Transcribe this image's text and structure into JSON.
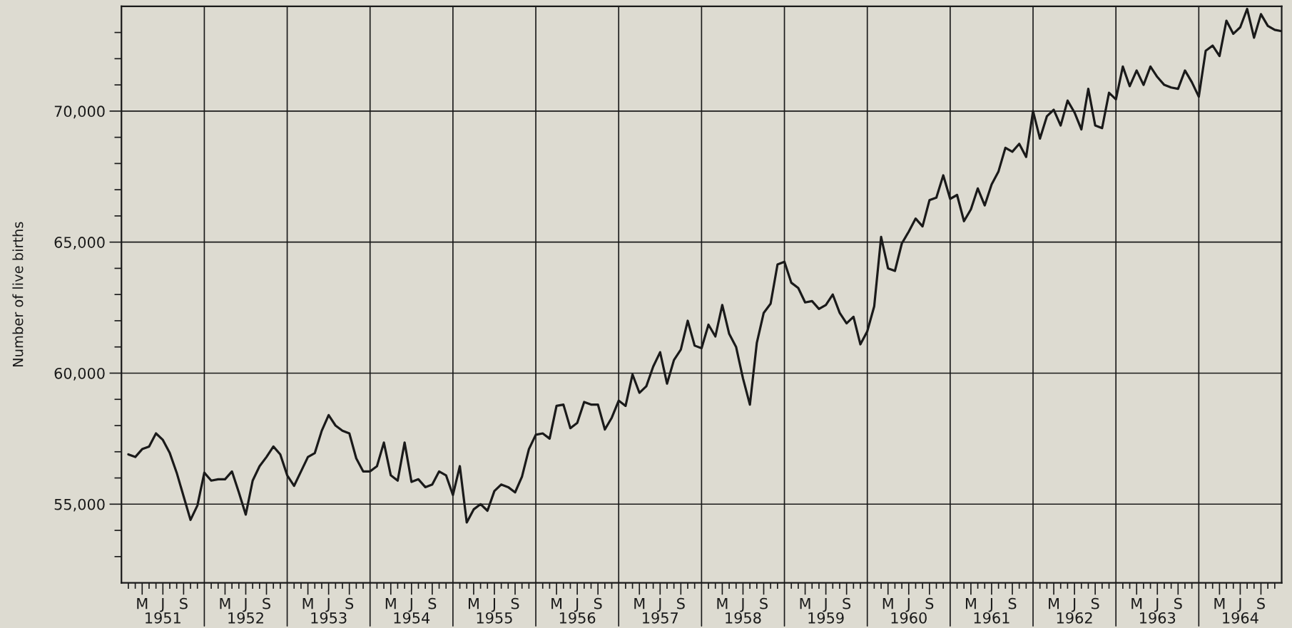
{
  "chart_data": {
    "type": "line",
    "ylabel": "Number of live births",
    "x": [
      "1951-01",
      "1951-02",
      "1951-03",
      "1951-04",
      "1951-05",
      "1951-06",
      "1951-07",
      "1951-08",
      "1951-09",
      "1951-10",
      "1951-11",
      "1951-12",
      "1952-01",
      "1952-02",
      "1952-03",
      "1952-04",
      "1952-05",
      "1952-06",
      "1952-07",
      "1952-08",
      "1952-09",
      "1952-10",
      "1952-11",
      "1952-12",
      "1953-01",
      "1953-02",
      "1953-03",
      "1953-04",
      "1953-05",
      "1953-06",
      "1953-07",
      "1953-08",
      "1953-09",
      "1953-10",
      "1953-11",
      "1953-12",
      "1954-01",
      "1954-02",
      "1954-03",
      "1954-04",
      "1954-05",
      "1954-06",
      "1954-07",
      "1954-08",
      "1954-09",
      "1954-10",
      "1954-11",
      "1954-12",
      "1955-01",
      "1955-02",
      "1955-03",
      "1955-04",
      "1955-05",
      "1955-06",
      "1955-07",
      "1955-08",
      "1955-09",
      "1955-10",
      "1955-11",
      "1955-12",
      "1956-01",
      "1956-02",
      "1956-03",
      "1956-04",
      "1956-05",
      "1956-06",
      "1956-07",
      "1956-08",
      "1956-09",
      "1956-10",
      "1956-11",
      "1956-12",
      "1957-01",
      "1957-02",
      "1957-03",
      "1957-04",
      "1957-05",
      "1957-06",
      "1957-07",
      "1957-08",
      "1957-09",
      "1957-10",
      "1957-11",
      "1957-12",
      "1958-01",
      "1958-02",
      "1958-03",
      "1958-04",
      "1958-05",
      "1958-06",
      "1958-07",
      "1958-08",
      "1958-09",
      "1958-10",
      "1958-11",
      "1958-12",
      "1959-01",
      "1959-02",
      "1959-03",
      "1959-04",
      "1959-05",
      "1959-06",
      "1959-07",
      "1959-08",
      "1959-09",
      "1959-10",
      "1959-11",
      "1959-12",
      "1960-01",
      "1960-02",
      "1960-03",
      "1960-04",
      "1960-05",
      "1960-06",
      "1960-07",
      "1960-08",
      "1960-09",
      "1960-10",
      "1960-11",
      "1960-12",
      "1961-01",
      "1961-02",
      "1961-03",
      "1961-04",
      "1961-05",
      "1961-06",
      "1961-07",
      "1961-08",
      "1961-09",
      "1961-10",
      "1961-11",
      "1961-12",
      "1962-01",
      "1962-02",
      "1962-03",
      "1962-04",
      "1962-05",
      "1962-06",
      "1962-07",
      "1962-08",
      "1962-09",
      "1962-10",
      "1962-11",
      "1962-12",
      "1963-01",
      "1963-02",
      "1963-03",
      "1963-04",
      "1963-05",
      "1963-06",
      "1963-07",
      "1963-08",
      "1963-09",
      "1963-10",
      "1963-11",
      "1963-12",
      "1964-01",
      "1964-02",
      "1964-03",
      "1964-04",
      "1964-05",
      "1964-06",
      "1964-07",
      "1964-08",
      "1964-09",
      "1964-10",
      "1964-11",
      "1964-12"
    ],
    "series": [
      {
        "color": "#1a1a1a",
        "values": [
          56900,
          56800,
          57100,
          57200,
          57700,
          57450,
          56950,
          56200,
          55300,
          54400,
          54950,
          56200,
          55900,
          55950,
          55950,
          56250,
          55450,
          54600,
          55900,
          56450,
          56800,
          57200,
          56900,
          56100,
          55700,
          56250,
          56800,
          56950,
          57800,
          58400,
          58000,
          57800,
          57700,
          56750,
          56250,
          56250,
          56450,
          57350,
          56100,
          55900,
          57350,
          55850,
          55950,
          55650,
          55750,
          56250,
          56100,
          55350,
          56450,
          54300,
          54800,
          55000,
          54750,
          55500,
          55750,
          55650,
          55450,
          56050,
          57100,
          57650,
          57700,
          57500,
          58750,
          58800,
          57900,
          58100,
          58900,
          58800,
          58800,
          57850,
          58300,
          58950,
          58750,
          59950,
          59250,
          59500,
          60250,
          60800,
          59600,
          60500,
          60900,
          62000,
          61050,
          60950,
          61850,
          61400,
          62600,
          61500,
          61000,
          59800,
          58800,
          61150,
          62300,
          62650,
          64150,
          64250,
          63450,
          63250,
          62700,
          62750,
          62450,
          62600,
          63000,
          62300,
          61900,
          62150,
          61100,
          61600,
          62550,
          65200,
          64000,
          63900,
          64950,
          65400,
          65900,
          65600,
          66600,
          66700,
          67550,
          66650,
          66800,
          65800,
          66250,
          67050,
          66400,
          67200,
          67700,
          68600,
          68450,
          68750,
          68250,
          70000,
          68950,
          69800,
          70050,
          69450,
          70400,
          69950,
          69300,
          70850,
          69450,
          69350,
          70700,
          70450,
          71700,
          70950,
          71550,
          71000,
          71700,
          71300,
          71000,
          70900,
          70850,
          71550,
          71100,
          70550,
          72300,
          72500,
          72100,
          73450,
          72950,
          73200,
          73900,
          72800,
          73700,
          73250,
          73100,
          73050
        ]
      }
    ],
    "xlim": [
      "1950-12",
      "1964-12"
    ],
    "xticks": [
      {
        "value": "1951-01",
        "label": null
      },
      {
        "value": "1951-02",
        "label": null
      },
      {
        "value": "1951-03",
        "label": "M"
      },
      {
        "value": "1951-04",
        "label": null
      },
      {
        "value": "1951-05",
        "label": null
      },
      {
        "value": "1951-06",
        "label": "J\n1951"
      },
      {
        "value": "1951-07",
        "label": null
      },
      {
        "value": "1951-08",
        "label": null
      },
      {
        "value": "1951-09",
        "label": "S"
      },
      {
        "value": "1951-10",
        "label": null
      },
      {
        "value": "1951-11",
        "label": null
      },
      {
        "value": "1952-01",
        "label": null
      },
      {
        "value": "1952-02",
        "label": null
      },
      {
        "value": "1952-03",
        "label": "M"
      },
      {
        "value": "1952-04",
        "label": null
      },
      {
        "value": "1952-05",
        "label": null
      },
      {
        "value": "1952-06",
        "label": "J\n1952"
      },
      {
        "value": "1952-07",
        "label": null
      },
      {
        "value": "1952-08",
        "label": null
      },
      {
        "value": "1952-09",
        "label": "S"
      },
      {
        "value": "1952-10",
        "label": null
      },
      {
        "value": "1952-11",
        "label": null
      },
      {
        "value": "1953-01",
        "label": null
      },
      {
        "value": "1953-02",
        "label": null
      },
      {
        "value": "1953-03",
        "label": "M"
      },
      {
        "value": "1953-04",
        "label": null
      },
      {
        "value": "1953-05",
        "label": null
      },
      {
        "value": "1953-06",
        "label": "J\n1953"
      },
      {
        "value": "1953-07",
        "label": null
      },
      {
        "value": "1953-08",
        "label": null
      },
      {
        "value": "1953-09",
        "label": "S"
      },
      {
        "value": "1953-10",
        "label": null
      },
      {
        "value": "1953-11",
        "label": null
      },
      {
        "value": "1954-01",
        "label": null
      },
      {
        "value": "1954-02",
        "label": null
      },
      {
        "value": "1954-03",
        "label": "M"
      },
      {
        "value": "1954-04",
        "label": null
      },
      {
        "value": "1954-05",
        "label": null
      },
      {
        "value": "1954-06",
        "label": "J\n1954"
      },
      {
        "value": "1954-07",
        "label": null
      },
      {
        "value": "1954-08",
        "label": null
      },
      {
        "value": "1954-09",
        "label": "S"
      },
      {
        "value": "1954-10",
        "label": null
      },
      {
        "value": "1954-11",
        "label": null
      },
      {
        "value": "1955-01",
        "label": null
      },
      {
        "value": "1955-02",
        "label": null
      },
      {
        "value": "1955-03",
        "label": "M"
      },
      {
        "value": "1955-04",
        "label": null
      },
      {
        "value": "1955-05",
        "label": null
      },
      {
        "value": "1955-06",
        "label": "J\n1955"
      },
      {
        "value": "1955-07",
        "label": null
      },
      {
        "value": "1955-08",
        "label": null
      },
      {
        "value": "1955-09",
        "label": "S"
      },
      {
        "value": "1955-10",
        "label": null
      },
      {
        "value": "1955-11",
        "label": null
      },
      {
        "value": "1956-01",
        "label": null
      },
      {
        "value": "1956-02",
        "label": null
      },
      {
        "value": "1956-03",
        "label": "M"
      },
      {
        "value": "1956-04",
        "label": null
      },
      {
        "value": "1956-05",
        "label": null
      },
      {
        "value": "1956-06",
        "label": "J\n1956"
      },
      {
        "value": "1956-07",
        "label": null
      },
      {
        "value": "1956-08",
        "label": null
      },
      {
        "value": "1956-09",
        "label": "S"
      },
      {
        "value": "1956-10",
        "label": null
      },
      {
        "value": "1956-11",
        "label": null
      },
      {
        "value": "1957-01",
        "label": null
      },
      {
        "value": "1957-02",
        "label": null
      },
      {
        "value": "1957-03",
        "label": "M"
      },
      {
        "value": "1957-04",
        "label": null
      },
      {
        "value": "1957-05",
        "label": null
      },
      {
        "value": "1957-06",
        "label": "J\n1957"
      },
      {
        "value": "1957-07",
        "label": null
      },
      {
        "value": "1957-08",
        "label": null
      },
      {
        "value": "1957-09",
        "label": "S"
      },
      {
        "value": "1957-10",
        "label": null
      },
      {
        "value": "1957-11",
        "label": null
      },
      {
        "value": "1958-01",
        "label": null
      },
      {
        "value": "1958-02",
        "label": null
      },
      {
        "value": "1958-03",
        "label": "M"
      },
      {
        "value": "1958-04",
        "label": null
      },
      {
        "value": "1958-05",
        "label": null
      },
      {
        "value": "1958-06",
        "label": "J\n1958"
      },
      {
        "value": "1958-07",
        "label": null
      },
      {
        "value": "1958-08",
        "label": null
      },
      {
        "value": "1958-09",
        "label": "S"
      },
      {
        "value": "1958-10",
        "label": null
      },
      {
        "value": "1958-11",
        "label": null
      },
      {
        "value": "1959-01",
        "label": null
      },
      {
        "value": "1959-02",
        "label": null
      },
      {
        "value": "1959-03",
        "label": "M"
      },
      {
        "value": "1959-04",
        "label": null
      },
      {
        "value": "1959-05",
        "label": null
      },
      {
        "value": "1959-06",
        "label": "J\n1959"
      },
      {
        "value": "1959-07",
        "label": null
      },
      {
        "value": "1959-08",
        "label": null
      },
      {
        "value": "1959-09",
        "label": "S"
      },
      {
        "value": "1959-10",
        "label": null
      },
      {
        "value": "1959-11",
        "label": null
      },
      {
        "value": "1960-01",
        "label": null
      },
      {
        "value": "1960-02",
        "label": null
      },
      {
        "value": "1960-03",
        "label": "M"
      },
      {
        "value": "1960-04",
        "label": null
      },
      {
        "value": "1960-05",
        "label": null
      },
      {
        "value": "1960-06",
        "label": "J\n1960"
      },
      {
        "value": "1960-07",
        "label": null
      },
      {
        "value": "1960-08",
        "label": null
      },
      {
        "value": "1960-09",
        "label": "S"
      },
      {
        "value": "1960-10",
        "label": null
      },
      {
        "value": "1960-11",
        "label": null
      },
      {
        "value": "1961-01",
        "label": null
      },
      {
        "value": "1961-02",
        "label": null
      },
      {
        "value": "1961-03",
        "label": "M"
      },
      {
        "value": "1961-04",
        "label": null
      },
      {
        "value": "1961-05",
        "label": null
      },
      {
        "value": "1961-06",
        "label": "J\n1961"
      },
      {
        "value": "1961-07",
        "label": null
      },
      {
        "value": "1961-08",
        "label": null
      },
      {
        "value": "1961-09",
        "label": "S"
      },
      {
        "value": "1961-10",
        "label": null
      },
      {
        "value": "1961-11",
        "label": null
      },
      {
        "value": "1962-01",
        "label": null
      },
      {
        "value": "1962-02",
        "label": null
      },
      {
        "value": "1962-03",
        "label": "M"
      },
      {
        "value": "1962-04",
        "label": null
      },
      {
        "value": "1962-05",
        "label": null
      },
      {
        "value": "1962-06",
        "label": "J\n1962"
      },
      {
        "value": "1962-07",
        "label": null
      },
      {
        "value": "1962-08",
        "label": null
      },
      {
        "value": "1962-09",
        "label": "S"
      },
      {
        "value": "1962-10",
        "label": null
      },
      {
        "value": "1962-11",
        "label": null
      },
      {
        "value": "1963-01",
        "label": null
      },
      {
        "value": "1963-02",
        "label": null
      },
      {
        "value": "1963-03",
        "label": "M"
      },
      {
        "value": "1963-04",
        "label": null
      },
      {
        "value": "1963-05",
        "label": null
      },
      {
        "value": "1963-06",
        "label": "J\n1963"
      },
      {
        "value": "1963-07",
        "label": null
      },
      {
        "value": "1963-08",
        "label": null
      },
      {
        "value": "1963-09",
        "label": "S"
      },
      {
        "value": "1963-10",
        "label": null
      },
      {
        "value": "1963-11",
        "label": null
      },
      {
        "value": "1964-01",
        "label": null
      },
      {
        "value": "1964-02",
        "label": null
      },
      {
        "value": "1964-03",
        "label": "M"
      },
      {
        "value": "1964-04",
        "label": null
      },
      {
        "value": "1964-05",
        "label": null
      },
      {
        "value": "1964-06",
        "label": "J\n1964"
      },
      {
        "value": "1964-07",
        "label": null
      },
      {
        "value": "1964-08",
        "label": null
      },
      {
        "value": "1964-09",
        "label": "S"
      },
      {
        "value": "1964-10",
        "label": null
      },
      {
        "value": "1964-11",
        "label": null
      }
    ],
    "ylim": [
      52000,
      74000
    ],
    "yticks": [
      {
        "value": 53000,
        "label": null
      },
      {
        "value": 54000,
        "label": null
      },
      {
        "value": 55000,
        "label": "55,000"
      },
      {
        "value": 56000,
        "label": null
      },
      {
        "value": 57000,
        "label": null
      },
      {
        "value": 58000,
        "label": null
      },
      {
        "value": 59000,
        "label": null
      },
      {
        "value": 60000,
        "label": "60,000"
      },
      {
        "value": 61000,
        "label": null
      },
      {
        "value": 62000,
        "label": null
      },
      {
        "value": 63000,
        "label": null
      },
      {
        "value": 64000,
        "label": null
      },
      {
        "value": 65000,
        "label": "65,000"
      },
      {
        "value": 66000,
        "label": null
      },
      {
        "value": 67000,
        "label": null
      },
      {
        "value": 68000,
        "label": null
      },
      {
        "value": 69000,
        "label": null
      },
      {
        "value": 70000,
        "label": "70,000"
      },
      {
        "value": 71000,
        "label": null
      },
      {
        "value": 72000,
        "label": null
      },
      {
        "value": 73000,
        "label": null
      }
    ],
    "grid": "y",
    "ref_lines": [
      {
        "axis": "x",
        "value": "1951-12",
        "label": null
      },
      {
        "axis": "x",
        "value": "1952-12",
        "label": null
      },
      {
        "axis": "x",
        "value": "1953-12",
        "label": null
      },
      {
        "axis": "x",
        "value": "1954-12",
        "label": null
      },
      {
        "axis": "x",
        "value": "1955-12",
        "label": null
      },
      {
        "axis": "x",
        "value": "1956-12",
        "label": null
      },
      {
        "axis": "x",
        "value": "1957-12",
        "label": null
      },
      {
        "axis": "x",
        "value": "1958-12",
        "label": null
      },
      {
        "axis": "x",
        "value": "1959-12",
        "label": null
      },
      {
        "axis": "x",
        "value": "1960-12",
        "label": null
      },
      {
        "axis": "x",
        "value": "1961-12",
        "label": null
      },
      {
        "axis": "x",
        "value": "1962-12",
        "label": null
      },
      {
        "axis": "x",
        "value": "1963-12",
        "label": null
      }
    ],
    "legend": false
  }
}
